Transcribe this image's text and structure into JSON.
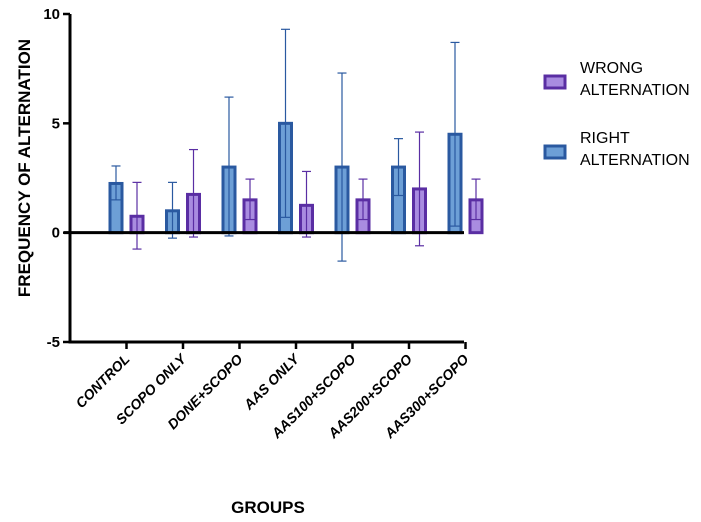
{
  "chart_data": {
    "type": "bar",
    "categories": [
      "CONTROL",
      "SCOPO ONLY",
      "DONE+SCOPO",
      "AAS ONLY",
      "AAS100+SCOPO",
      "AAS200+SCOPO",
      "AAS300+SCOPO"
    ],
    "series": [
      {
        "name": "RIGHT ALTERNATION",
        "values": [
          2.25,
          1.0,
          3.0,
          5.0,
          3.0,
          3.0,
          4.5
        ],
        "error_low": [
          1.5,
          -0.25,
          -0.15,
          0.7,
          -1.3,
          1.7,
          0.3
        ],
        "error_high": [
          3.05,
          2.3,
          6.2,
          9.3,
          7.3,
          4.3,
          8.7
        ],
        "fill": "#6d9fd6",
        "stroke": "#2a59a0"
      },
      {
        "name": "WRONG ALTERNATION",
        "values": [
          0.75,
          1.75,
          1.5,
          1.25,
          1.5,
          2.0,
          1.5
        ],
        "error_low": [
          -0.75,
          -0.2,
          0.6,
          -0.2,
          0.6,
          -0.6,
          0.6
        ],
        "error_high": [
          2.3,
          3.8,
          2.45,
          2.8,
          2.45,
          4.6,
          2.45
        ],
        "fill": "#a98ce0",
        "stroke": "#5a2ea3"
      }
    ],
    "xlabel": "GROUPS",
    "ylabel": "FREQUENCY OF ALTERNATION",
    "ylim": [
      -5,
      10
    ],
    "yticks": [
      "-5",
      "0",
      "5",
      "10"
    ],
    "grid": false,
    "legend_placement": "right",
    "legend": [
      {
        "lines": [
          "WRONG",
          "ALTERNATION"
        ],
        "series": "WRONG ALTERNATION"
      },
      {
        "lines": [
          "RIGHT",
          "ALTERNATION"
        ],
        "series": "RIGHT ALTERNATION"
      }
    ]
  }
}
